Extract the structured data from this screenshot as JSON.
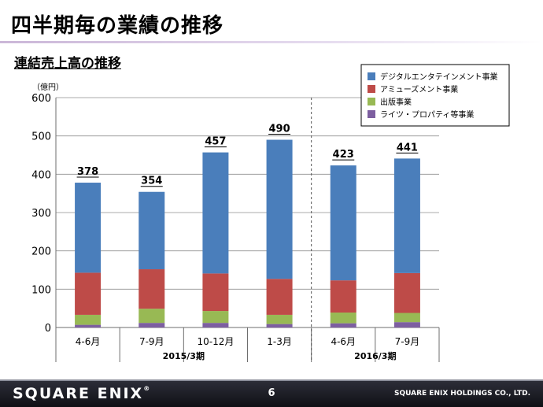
{
  "page": {
    "title": "四半期毎の業績の推移",
    "section_title": "連結売上高の推移",
    "page_number": "6",
    "brand": "SQUARE ENIX",
    "brand_mark": "®",
    "company": "SQUARE ENIX HOLDINGS CO., LTD."
  },
  "colors": {
    "digital": "#4a7ebb",
    "amusement": "#be4b48",
    "publication": "#98b954",
    "merchandising": "#7d5fa0"
  },
  "chart_data": {
    "type": "bar",
    "stacked": true,
    "unit_label": "（億円）",
    "categories": [
      "4-6月",
      "7-9月",
      "10-12月",
      "1-3月",
      "4-6月",
      "7-9月"
    ],
    "groups": [
      {
        "label": "2015/3期",
        "categories": [
          0,
          1,
          2,
          3
        ]
      },
      {
        "label": "2016/3期",
        "categories": [
          4,
          5
        ]
      }
    ],
    "series": [
      {
        "name": "ライツ・プロパティ等事業",
        "color_key": "merchandising",
        "values": [
          7,
          12,
          12,
          9,
          11,
          14
        ]
      },
      {
        "name": "出版事業",
        "color_key": "publication",
        "values": [
          26,
          37,
          31,
          24,
          28,
          24
        ]
      },
      {
        "name": "アミューズメント事業",
        "color_key": "amusement",
        "values": [
          110,
          103,
          98,
          94,
          84,
          104
        ]
      },
      {
        "name": "デジタルエンタテインメント事業",
        "color_key": "digital",
        "values": [
          235,
          202,
          316,
          363,
          300,
          299
        ]
      }
    ],
    "totals": [
      "378",
      "354",
      "457",
      "490",
      "423",
      "441"
    ],
    "legend_order": [
      "デジタルエンタテインメント事業",
      "アミューズメント事業",
      "出版事業",
      "ライツ・プロパティ等事業"
    ],
    "ylim": [
      0,
      600
    ],
    "yticks": [
      0,
      100,
      200,
      300,
      400,
      500,
      600
    ],
    "grid": true,
    "legend_position": "top-right",
    "divider_after_category": 3
  }
}
